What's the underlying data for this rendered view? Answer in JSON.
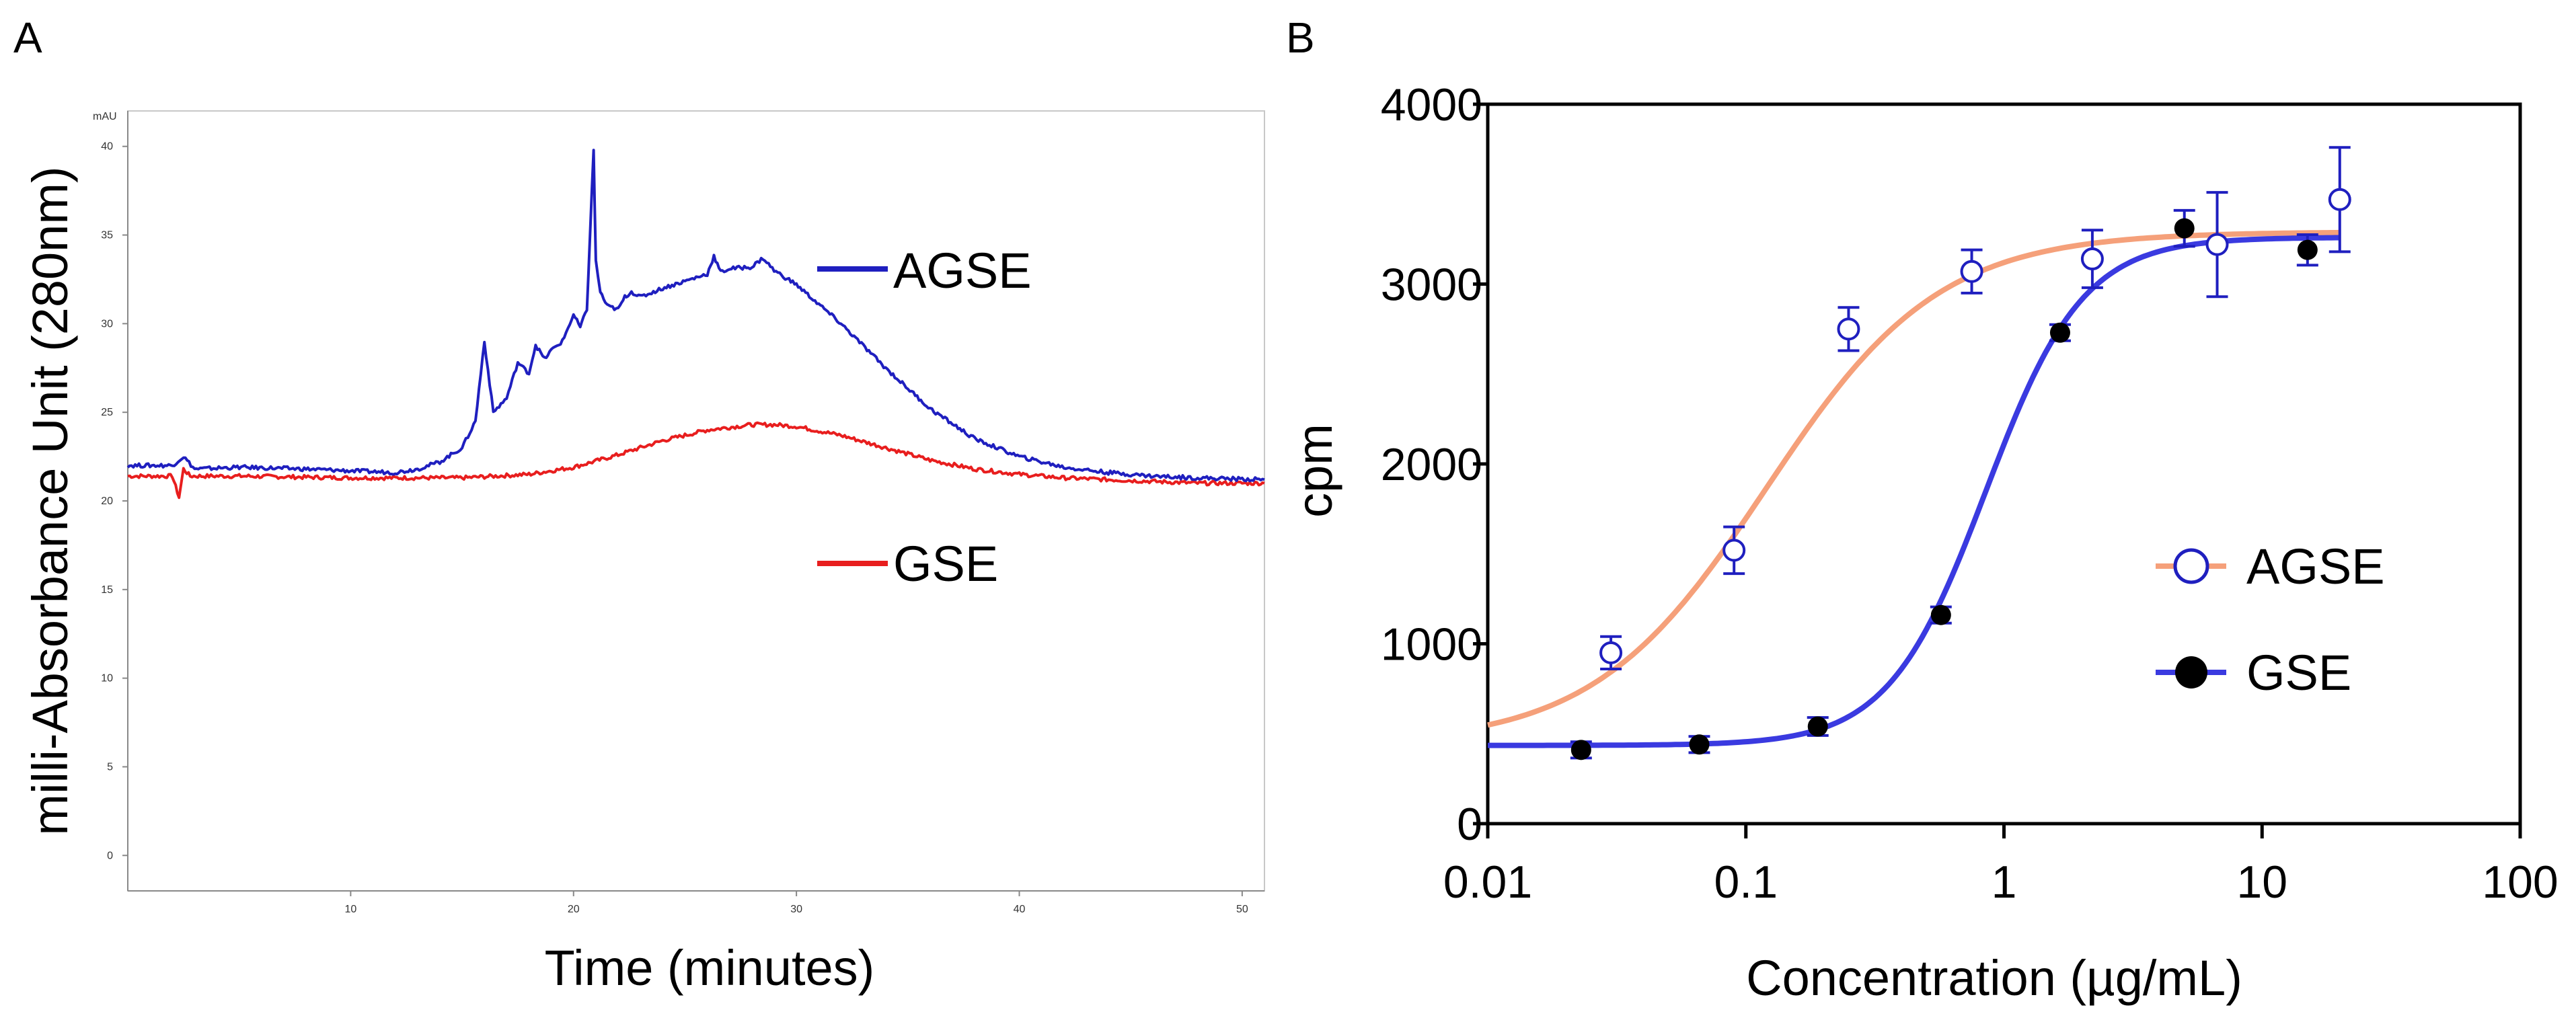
{
  "chart_data": [
    {
      "panel": "A",
      "type": "line",
      "title": "",
      "xlabel": "Time (minutes)",
      "ylabel": "milli-Absorbance Unit (280nm)",
      "yunit": "mAU",
      "xlim": [
        0,
        51
      ],
      "ylim": [
        -2,
        42
      ],
      "xticks": [
        10,
        20,
        30,
        40,
        50
      ],
      "yticks": [
        0,
        5,
        10,
        15,
        20,
        25,
        30,
        35,
        40
      ],
      "legend_position": "right-center",
      "series": [
        {
          "name": "AGSE",
          "color": "#1f1fbf",
          "x": [
            0,
            2,
            2.5,
            3,
            5,
            8,
            10,
            12,
            13,
            14,
            15,
            15.6,
            16,
            16.4,
            17,
            17.5,
            18,
            18.3,
            18.7,
            19,
            19.5,
            20,
            20.3,
            20.6,
            20.9,
            21.0,
            21.2,
            21.5,
            22,
            22.3,
            22.6,
            23,
            24,
            25,
            26,
            26.3,
            26.6,
            27,
            28,
            28.5,
            29,
            30,
            32,
            34,
            36,
            38,
            40,
            42,
            44,
            46,
            48,
            51
          ],
          "values": [
            22.0,
            22.0,
            22.5,
            21.8,
            21.9,
            21.8,
            21.7,
            21.6,
            21.8,
            22.2,
            23.0,
            24.5,
            29.0,
            25.0,
            25.8,
            27.8,
            27.2,
            28.8,
            28.0,
            28.5,
            29.0,
            30.5,
            29.8,
            30.8,
            39.8,
            33.5,
            31.8,
            31.0,
            30.8,
            31.5,
            31.8,
            31.5,
            32.0,
            32.4,
            32.8,
            33.8,
            32.9,
            33.1,
            33.2,
            33.7,
            33.0,
            32.2,
            30.0,
            27.5,
            25.2,
            23.5,
            22.5,
            21.9,
            21.6,
            21.4,
            21.3,
            21.2
          ]
        },
        {
          "name": "GSE",
          "color": "#e81e1e",
          "x": [
            0,
            2,
            2.3,
            2.5,
            2.8,
            5,
            10,
            15,
            18,
            20,
            22,
            24,
            26,
            28,
            29,
            30,
            32,
            34,
            36,
            38,
            40,
            42,
            44,
            46,
            48,
            51
          ],
          "values": [
            21.4,
            21.4,
            20.2,
            21.8,
            21.4,
            21.4,
            21.3,
            21.3,
            21.5,
            21.9,
            22.6,
            23.4,
            24.0,
            24.3,
            24.3,
            24.2,
            23.7,
            23.0,
            22.3,
            21.8,
            21.5,
            21.3,
            21.2,
            21.1,
            21.0,
            21.0
          ]
        }
      ]
    },
    {
      "panel": "B",
      "type": "scatter",
      "title": "",
      "xlabel": "Concentration (µg/mL)",
      "ylabel": "cpm",
      "xscale": "log",
      "xlim": [
        0.01,
        100
      ],
      "ylim": [
        0,
        4000
      ],
      "xticks": [
        "0.01",
        "0.1",
        "1",
        "10",
        "100"
      ],
      "yticks": [
        "0",
        "1000",
        "2000",
        "3000",
        "4000"
      ],
      "legend_position": "center-right",
      "series": [
        {
          "name": "AGSE",
          "marker": "open-circle",
          "marker_color": "#1f1fbf",
          "fit_color": "#f5a07a",
          "x": [
            0.03,
            0.09,
            0.25,
            0.75,
            2.2,
            6.7,
            20
          ],
          "values": [
            950,
            1520,
            2750,
            3070,
            3140,
            3220,
            3470
          ],
          "errors": [
            90,
            130,
            120,
            120,
            160,
            290,
            290
          ],
          "fit": {
            "bottom": 440,
            "top": 3290,
            "ec50": 0.12,
            "hill": 1.3,
            "x_range": [
              0.01,
              20
            ]
          }
        },
        {
          "name": "GSE",
          "marker": "filled-circle",
          "marker_color": "#000000",
          "fit_color": "#3a3ae0",
          "x": [
            0.023,
            0.066,
            0.19,
            0.57,
            1.65,
            5.0,
            15
          ],
          "values": [
            410,
            440,
            540,
            1160,
            2730,
            3310,
            3190
          ],
          "errors": [
            45,
            45,
            50,
            45,
            45,
            100,
            85
          ],
          "fit": {
            "bottom": 435,
            "top": 3260,
            "ec50": 0.85,
            "hill": 2.3,
            "x_range": [
              0.01,
              20
            ]
          }
        }
      ]
    }
  ],
  "labels": {
    "panel_a": "A",
    "panel_b": "B"
  }
}
